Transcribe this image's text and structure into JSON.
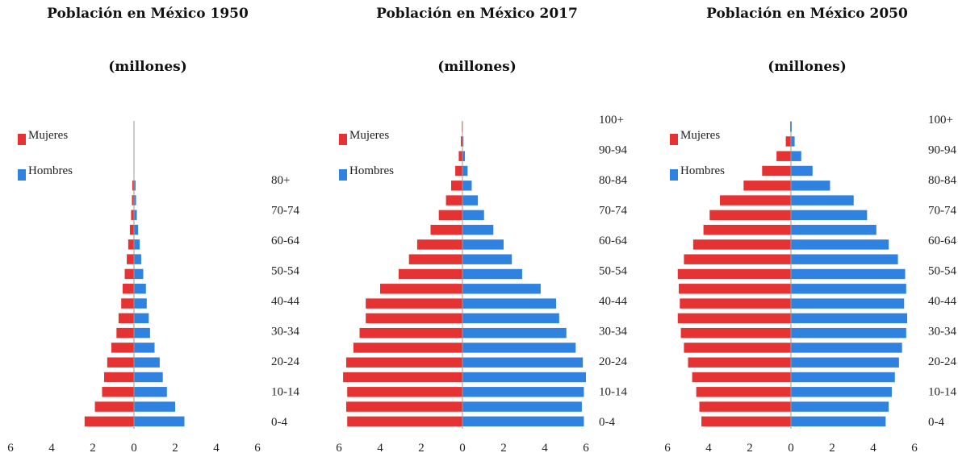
{
  "colors": {
    "mujeres": "#e53333",
    "hombres": "#2f82e0",
    "axis": "#999999"
  },
  "legend": {
    "mujeres": "Mujeres",
    "hombres": "Hombres"
  },
  "chart_data": [
    {
      "type": "bar",
      "orientation": "horizontal-population-pyramid",
      "title": "Población en México 1950",
      "subtitle": "(millones)",
      "xlim": [
        -6,
        6
      ],
      "x_ticks": [
        "6",
        "4",
        "2",
        "0",
        "2",
        "4",
        "6"
      ],
      "categories": [
        "0-4",
        "5-9",
        "10-14",
        "15-19",
        "20-24",
        "25-29",
        "30-34",
        "35-39",
        "40-44",
        "45-49",
        "50-54",
        "55-59",
        "60-64",
        "65-69",
        "70-74",
        "75-79",
        "80+"
      ],
      "age_labels": [
        "0-4",
        "10-14",
        "20-24",
        "30-34",
        "40-44",
        "50-54",
        "60-64",
        "70-74",
        "80+"
      ],
      "legend_position": "top-left",
      "series": [
        {
          "name": "Mujeres",
          "values": [
            2.4,
            1.9,
            1.55,
            1.45,
            1.3,
            1.1,
            0.85,
            0.75,
            0.62,
            0.55,
            0.45,
            0.35,
            0.28,
            0.2,
            0.14,
            0.1,
            0.08
          ]
        },
        {
          "name": "Hombres",
          "values": [
            2.45,
            2.0,
            1.6,
            1.4,
            1.25,
            1.0,
            0.78,
            0.72,
            0.62,
            0.58,
            0.45,
            0.35,
            0.28,
            0.2,
            0.14,
            0.1,
            0.08
          ]
        }
      ]
    },
    {
      "type": "bar",
      "orientation": "horizontal-population-pyramid",
      "title": "Población en México 2017",
      "subtitle": "(millones)",
      "xlim": [
        -6,
        6
      ],
      "x_ticks": [
        "6",
        "4",
        "2",
        "0",
        "2",
        "4",
        "6"
      ],
      "categories": [
        "0-4",
        "5-9",
        "10-14",
        "15-19",
        "20-24",
        "25-29",
        "30-34",
        "35-39",
        "40-44",
        "45-49",
        "50-54",
        "55-59",
        "60-64",
        "65-69",
        "70-74",
        "75-79",
        "80-84",
        "85-89",
        "90-94",
        "95-99",
        "100+"
      ],
      "age_labels": [
        "0-4",
        "10-14",
        "20-24",
        "30-34",
        "40-44",
        "50-54",
        "60-64",
        "70-74",
        "80-84",
        "90-94",
        "100+"
      ],
      "legend_position": "top-left",
      "series": [
        {
          "name": "Mujeres",
          "values": [
            5.6,
            5.65,
            5.6,
            5.8,
            5.65,
            5.3,
            5.0,
            4.7,
            4.7,
            4.0,
            3.1,
            2.6,
            2.2,
            1.55,
            1.15,
            0.8,
            0.55,
            0.35,
            0.18,
            0.08,
            0.03
          ]
        },
        {
          "name": "Hombres",
          "values": [
            5.9,
            5.8,
            5.9,
            6.0,
            5.85,
            5.5,
            5.05,
            4.7,
            4.55,
            3.8,
            2.9,
            2.4,
            2.0,
            1.5,
            1.05,
            0.75,
            0.45,
            0.25,
            0.12,
            0.05,
            0.02
          ]
        }
      ]
    },
    {
      "type": "bar",
      "orientation": "horizontal-population-pyramid",
      "title": "Población en México 2050",
      "subtitle": "(millones)",
      "xlim": [
        -6,
        6
      ],
      "x_ticks": [
        "6",
        "4",
        "2",
        "0",
        "2",
        "4",
        "6"
      ],
      "categories": [
        "0-4",
        "5-9",
        "10-14",
        "15-19",
        "20-24",
        "25-29",
        "30-34",
        "35-39",
        "40-44",
        "45-49",
        "50-54",
        "55-59",
        "60-64",
        "65-69",
        "70-74",
        "75-79",
        "80-84",
        "85-89",
        "90-94",
        "95-99",
        "100+"
      ],
      "age_labels": [
        "0-4",
        "10-14",
        "20-24",
        "30-34",
        "40-44",
        "50-54",
        "60-64",
        "70-74",
        "80-84",
        "90-94",
        "100+"
      ],
      "legend_position": "top-left",
      "series": [
        {
          "name": "Mujeres",
          "values": [
            4.35,
            4.45,
            4.6,
            4.8,
            5.0,
            5.2,
            5.35,
            5.5,
            5.4,
            5.45,
            5.5,
            5.2,
            4.75,
            4.25,
            3.95,
            3.45,
            2.3,
            1.4,
            0.7,
            0.25,
            0.04
          ]
        },
        {
          "name": "Hombres",
          "values": [
            4.6,
            4.75,
            4.9,
            5.05,
            5.25,
            5.4,
            5.6,
            5.65,
            5.5,
            5.6,
            5.55,
            5.2,
            4.75,
            4.15,
            3.7,
            3.05,
            1.9,
            1.05,
            0.5,
            0.18,
            0.04
          ]
        }
      ]
    }
  ]
}
